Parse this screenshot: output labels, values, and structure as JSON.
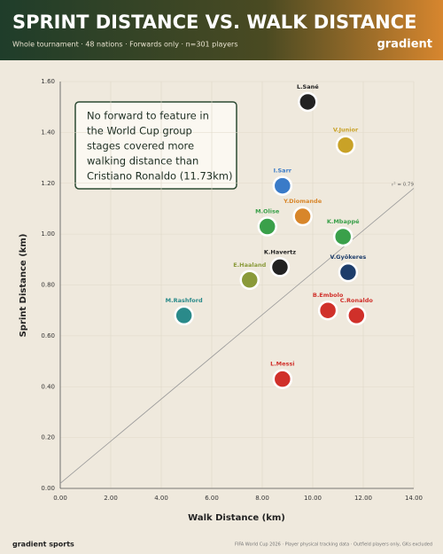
{
  "chart_data": {
    "type": "scatter",
    "title": "SPRINT DISTANCE VS. WALK DISTANCE",
    "subtitle": "Whole tournament · 48 nations · Forwards only · n=301 players",
    "brand": "gradient",
    "x_label": "Walk Distance (km)",
    "y_label": "Sprint Distance (km)",
    "xlim": [
      0,
      14
    ],
    "ylim": [
      0,
      1.6
    ],
    "xticks": [
      {
        "value": 0,
        "label": "0.00"
      },
      {
        "value": 2,
        "label": "2.00"
      },
      {
        "value": 4,
        "label": "4.00"
      },
      {
        "value": 6,
        "label": "6.00"
      },
      {
        "value": 8,
        "label": "8.00"
      },
      {
        "value": 10,
        "label": "10.00"
      },
      {
        "value": 12,
        "label": "12.00"
      },
      {
        "value": 14,
        "label": "14.00"
      }
    ],
    "yticks": [
      {
        "value": 0,
        "label": "0.00"
      },
      {
        "value": 0.2,
        "label": "0.20"
      },
      {
        "value": 0.4,
        "label": "0.40"
      },
      {
        "value": 0.6,
        "label": "0.60"
      },
      {
        "value": 0.8,
        "label": "0.80"
      },
      {
        "value": 1.0,
        "label": "1.00"
      },
      {
        "value": 1.2,
        "label": "1.20"
      },
      {
        "value": 1.4,
        "label": "1.40"
      },
      {
        "value": 1.6,
        "label": "1.60"
      }
    ],
    "points": [
      {
        "name": "L.Sané",
        "x": 9.8,
        "y": 1.52,
        "color": "#222222"
      },
      {
        "name": "V.Junior",
        "x": 11.3,
        "y": 1.35,
        "color": "#c9a227"
      },
      {
        "name": "I.Sarr",
        "x": 8.8,
        "y": 1.19,
        "color": "#3a7bc8"
      },
      {
        "name": "Y.Diomande",
        "x": 9.6,
        "y": 1.07,
        "color": "#d8862a"
      },
      {
        "name": "M.Olise",
        "x": 8.2,
        "y": 1.03,
        "color": "#3aa04a"
      },
      {
        "name": "K.Mbappé",
        "x": 11.2,
        "y": 0.99,
        "color": "#3aa04a"
      },
      {
        "name": "K.Havertz",
        "x": 8.7,
        "y": 0.87,
        "color": "#222222"
      },
      {
        "name": "V.Gyökeres",
        "x": 11.4,
        "y": 0.85,
        "color": "#1d3d6b"
      },
      {
        "name": "E.Haaland",
        "x": 7.5,
        "y": 0.82,
        "color": "#8a9a3a"
      },
      {
        "name": "M.Rashford",
        "x": 4.9,
        "y": 0.68,
        "color": "#2a8a8a"
      },
      {
        "name": "B.Embolo",
        "x": 10.6,
        "y": 0.7,
        "color": "#d0302a"
      },
      {
        "name": "C.Ronaldo",
        "x": 11.73,
        "y": 0.68,
        "color": "#d0302a"
      },
      {
        "name": "L.Messi",
        "x": 8.8,
        "y": 0.43,
        "color": "#d0302a"
      }
    ],
    "trend": {
      "label": "r² = 0.79",
      "x": [
        0,
        14
      ],
      "y": [
        0.02,
        1.18
      ]
    },
    "annotation": [
      "No forward to feature in",
      "the World Cup group",
      "stages covered more",
      "walking distance than",
      "Cristiano Ronaldo (11.73km)"
    ],
    "footer_left": "gradient sports",
    "footer_right": "FIFA World Cup 2026 · Player physical tracking data · Outfield players only, GKs excluded"
  }
}
